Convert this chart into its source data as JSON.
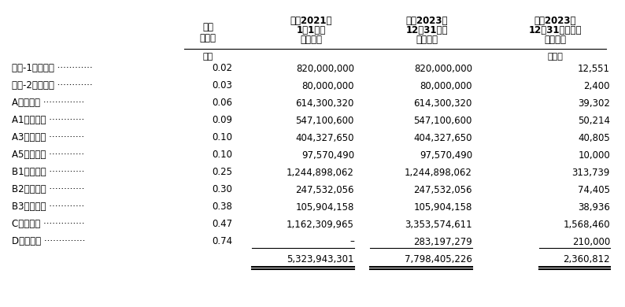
{
  "headers": {
    "col0": "",
    "col1": "每股\n發行價",
    "col2": "截至2021年\n1月1日的\n股份數目",
    "col3": "截至2023年\n12月31日的\n股份數目",
    "col4": "截至2023年\n12月31日收取的\n對價總額"
  },
  "subheader_col1": "美元",
  "subheader_col4": "千美元",
  "rows": [
    {
      "label": "種子-1輪優先股 ············",
      "col1": "0.02",
      "col2": "820,000,000",
      "col3": "820,000,000",
      "col4": "12,551"
    },
    {
      "label": "種子-2輪優先股 ············",
      "col1": "0.03",
      "col2": "80,000,000",
      "col3": "80,000,000",
      "col4": "2,400"
    },
    {
      "label": "A輪優先股 ··············",
      "col1": "0.06",
      "col2": "614,300,320",
      "col3": "614,300,320",
      "col4": "39,302"
    },
    {
      "label": "A1輪優先股 ············",
      "col1": "0.09",
      "col2": "547,100,600",
      "col3": "547,100,600",
      "col4": "50,214"
    },
    {
      "label": "A3輪優先股 ············",
      "col1": "0.10",
      "col2": "404,327,650",
      "col3": "404,327,650",
      "col4": "40,805"
    },
    {
      "label": "A5輪優先股 ············",
      "col1": "0.10",
      "col2": "97,570,490",
      "col3": "97,570,490",
      "col4": "10,000"
    },
    {
      "label": "B1輪優先股 ············",
      "col1": "0.25",
      "col2": "1,244,898,062",
      "col3": "1,244,898,062",
      "col4": "313,739"
    },
    {
      "label": "B2輪優先股 ············",
      "col1": "0.30",
      "col2": "247,532,056",
      "col3": "247,532,056",
      "col4": "74,405"
    },
    {
      "label": "B3輪優先股 ············",
      "col1": "0.38",
      "col2": "105,904,158",
      "col3": "105,904,158",
      "col4": "38,936"
    },
    {
      "label": "C輪優先股 ··············",
      "col1": "0.47",
      "col2": "1,162,309,965",
      "col3": "3,353,574,611",
      "col4": "1,568,460"
    },
    {
      "label": "D輪優先股 ··············",
      "col1": "0.74",
      "col2": "–",
      "col3": "283,197,279",
      "col4": "210,000"
    }
  ],
  "total_row": {
    "col2": "5,323,943,301",
    "col3": "7,798,405,226",
    "col4": "2,360,812"
  },
  "bg_color": "#ffffff",
  "text_color": "#000000",
  "header_line_color": "#000000",
  "total_line_color": "#000000",
  "font_size": 8.5,
  "header_font_size": 8.5
}
